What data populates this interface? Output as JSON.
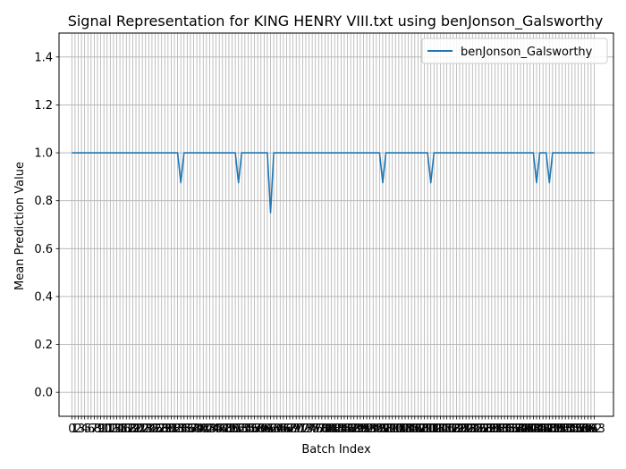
{
  "chart_data": {
    "type": "line",
    "title": "Signal Representation for KING HENRY VIII.txt using benJonson_Galsworthy",
    "xlabel": "Batch Index",
    "ylabel": "Mean Prediction Value",
    "xlim": [
      -4,
      169
    ],
    "ylim": [
      -0.1,
      1.5
    ],
    "yticks": [
      "0.0",
      "0.2",
      "0.4",
      "0.6",
      "0.8",
      "1.0",
      "1.2",
      "1.4"
    ],
    "grid": true,
    "legend_position": "top-right",
    "series": [
      {
        "name": "benJonson_Galsworthy",
        "color": "#1f77b4",
        "x_start": 0,
        "x_end": 163,
        "default_value": 1.0,
        "deviations": [
          {
            "x": 34,
            "y": 0.875
          },
          {
            "x": 52,
            "y": 0.875
          },
          {
            "x": 62,
            "y": 0.75
          },
          {
            "x": 97,
            "y": 0.875
          },
          {
            "x": 112,
            "y": 0.875
          },
          {
            "x": 145,
            "y": 0.875
          },
          {
            "x": 149,
            "y": 0.875
          }
        ]
      }
    ]
  }
}
